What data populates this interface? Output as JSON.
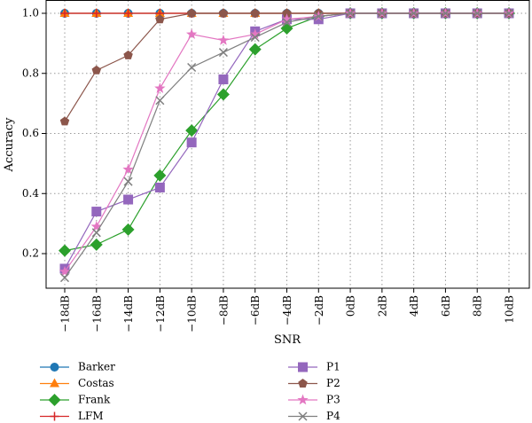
{
  "chart_data": {
    "type": "line",
    "title": "",
    "xlabel": "SNR",
    "ylabel": "Accuracy",
    "categories": [
      "−18dB",
      "−16dB",
      "−14dB",
      "−12dB",
      "−10dB",
      "−8dB",
      "−6dB",
      "−4dB",
      "−2dB",
      "0dB",
      "2dB",
      "4dB",
      "6dB",
      "8dB",
      "10dB"
    ],
    "ylim": [
      0.1,
      1.0
    ],
    "yticks": [
      "0.2",
      "0.4",
      "0.6",
      "0.8",
      "1.0"
    ],
    "grid": true,
    "legend_position": "bottom",
    "series": [
      {
        "name": "Barker",
        "color": "#1f77b4",
        "marker": "circle",
        "values": [
          1.0,
          1.0,
          1.0,
          1.0,
          1.0,
          1.0,
          1.0,
          1.0,
          1.0,
          1.0,
          1.0,
          1.0,
          1.0,
          1.0,
          1.0
        ]
      },
      {
        "name": "Costas",
        "color": "#ff7f0e",
        "marker": "triangle",
        "values": [
          1.0,
          1.0,
          1.0,
          1.0,
          1.0,
          1.0,
          1.0,
          1.0,
          1.0,
          1.0,
          1.0,
          1.0,
          1.0,
          1.0,
          1.0
        ]
      },
      {
        "name": "Frank",
        "color": "#2ca02c",
        "marker": "diamond",
        "values": [
          0.21,
          0.23,
          0.28,
          0.46,
          0.61,
          0.73,
          0.88,
          0.95,
          0.99,
          1.0,
          1.0,
          1.0,
          1.0,
          1.0,
          1.0
        ]
      },
      {
        "name": "LFM",
        "color": "#d62728",
        "marker": "plus",
        "values": [
          1.0,
          1.0,
          1.0,
          1.0,
          1.0,
          1.0,
          1.0,
          1.0,
          1.0,
          1.0,
          1.0,
          1.0,
          1.0,
          1.0,
          1.0
        ]
      },
      {
        "name": "P1",
        "color": "#9467bd",
        "marker": "square",
        "values": [
          0.15,
          0.34,
          0.38,
          0.42,
          0.57,
          0.78,
          0.94,
          0.98,
          0.98,
          1.0,
          1.0,
          1.0,
          1.0,
          1.0,
          1.0
        ]
      },
      {
        "name": "P2",
        "color": "#8c564b",
        "marker": "pentagon",
        "values": [
          0.64,
          0.81,
          0.86,
          0.98,
          1.0,
          1.0,
          1.0,
          1.0,
          1.0,
          1.0,
          1.0,
          1.0,
          1.0,
          1.0,
          1.0
        ]
      },
      {
        "name": "P3",
        "color": "#e377c2",
        "marker": "star",
        "values": [
          0.14,
          0.29,
          0.48,
          0.75,
          0.93,
          0.91,
          0.93,
          0.98,
          0.99,
          1.0,
          1.0,
          1.0,
          1.0,
          1.0,
          1.0
        ]
      },
      {
        "name": "P4",
        "color": "#7f7f7f",
        "marker": "x",
        "values": [
          0.12,
          0.27,
          0.44,
          0.71,
          0.82,
          0.87,
          0.92,
          0.97,
          0.99,
          1.0,
          1.0,
          1.0,
          1.0,
          1.0,
          1.0
        ]
      }
    ]
  }
}
